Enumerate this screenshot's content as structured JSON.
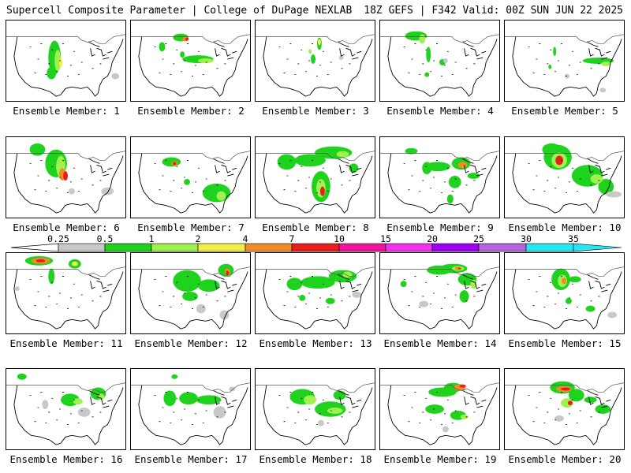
{
  "header": {
    "left": "Supercell Composite Parameter | College of DuPage NEXLAB",
    "right": "18Z GEFS | F342 Valid: 00Z SUN JUN 22 2025"
  },
  "colorbar": {
    "ticks": [
      "0.25",
      "0.5",
      "1",
      "2",
      "4",
      "7",
      "10",
      "15",
      "20",
      "25",
      "30",
      "35"
    ],
    "colors": [
      "#c8c8c8",
      "#1ed21e",
      "#a0f050",
      "#f0f046",
      "#f08c28",
      "#e61e1e",
      "#f0149b",
      "#f032f0",
      "#a000f0",
      "#b464dc",
      "#28e6f0"
    ]
  },
  "members": [
    {
      "label": "Ensemble Member: 1"
    },
    {
      "label": "Ensemble Member: 2"
    },
    {
      "label": "Ensemble Member: 3"
    },
    {
      "label": "Ensemble Member: 4"
    },
    {
      "label": "Ensemble Member: 5"
    },
    {
      "label": "Ensemble Member: 6"
    },
    {
      "label": "Ensemble Member: 7"
    },
    {
      "label": "Ensemble Member: 8"
    },
    {
      "label": "Ensemble Member: 9"
    },
    {
      "label": "Ensemble Member: 10"
    },
    {
      "label": "Ensemble Member: 11"
    },
    {
      "label": "Ensemble Member: 12"
    },
    {
      "label": "Ensemble Member: 13"
    },
    {
      "label": "Ensemble Member: 14"
    },
    {
      "label": "Ensemble Member: 15"
    },
    {
      "label": "Ensemble Member: 16"
    },
    {
      "label": "Ensemble Member: 17"
    },
    {
      "label": "Ensemble Member: 18"
    },
    {
      "label": "Ensemble Member: 19"
    },
    {
      "label": "Ensemble Member: 20"
    }
  ]
}
